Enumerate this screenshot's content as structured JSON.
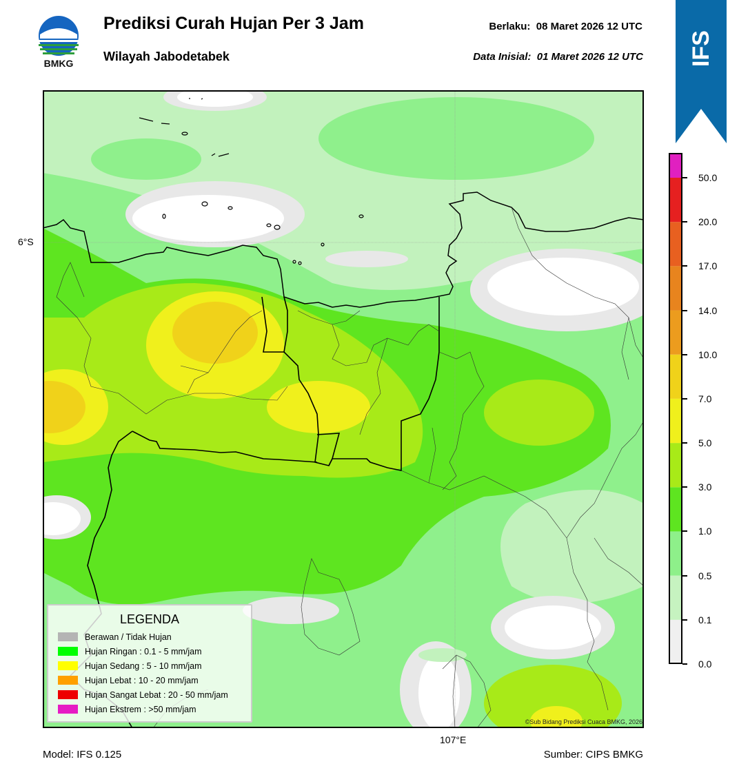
{
  "header": {
    "title": "Prediksi Curah Hujan Per 3 Jam",
    "subtitle": "Wilayah Jabodetabek",
    "valid_label": "Berlaku:",
    "valid_value": "08 Maret 2026 12 UTC",
    "init_label": "Data Inisial:",
    "init_value": "01 Maret 2026 12 UTC"
  },
  "logo": {
    "text": "BMKG",
    "icon": "bmkg-logo"
  },
  "banner": {
    "text": "IFS",
    "color": "#0a6aa8"
  },
  "map": {
    "lat_label": "6°S",
    "lon_label": "107°E",
    "credit": "©Sub Bidang Prediksi Cuaca BMKG, 2026"
  },
  "legend": {
    "title": "LEGENDA",
    "items": [
      {
        "label": "Berawan / Tidak Hujan",
        "color": "#b4b4b4"
      },
      {
        "label": "Hujan Ringan : 0.1 - 5 mm/jam",
        "color": "#00ff00"
      },
      {
        "label": "Hujan Sedang : 5 - 10 mm/jam",
        "color": "#ffff00"
      },
      {
        "label": "Hujan Lebat : 10 - 20 mm/jam",
        "color": "#ffa000"
      },
      {
        "label": "Hujan Sangat Lebat : 20 - 50 mm/jam",
        "color": "#ee0000"
      },
      {
        "label": "Hujan Ekstrem : >50 mm/jam",
        "color": "#e61cc4"
      }
    ]
  },
  "colorbar": {
    "ticks": [
      "0.0",
      "0.1",
      "0.5",
      "1.0",
      "3.0",
      "5.0",
      "7.0",
      "10.0",
      "14.0",
      "17.0",
      "20.0",
      "50.0"
    ],
    "colors": [
      "#f0f0f0",
      "#c6f3c0",
      "#8ef08a",
      "#5ee520",
      "#a8ea18",
      "#f0f01c",
      "#f0d21a",
      "#ec9c1e",
      "#e8841e",
      "#e86020",
      "#e62020",
      "#e020c0"
    ]
  },
  "footer": {
    "model": "Model: IFS 0.125",
    "source": "Sumber: CIPS BMKG"
  }
}
